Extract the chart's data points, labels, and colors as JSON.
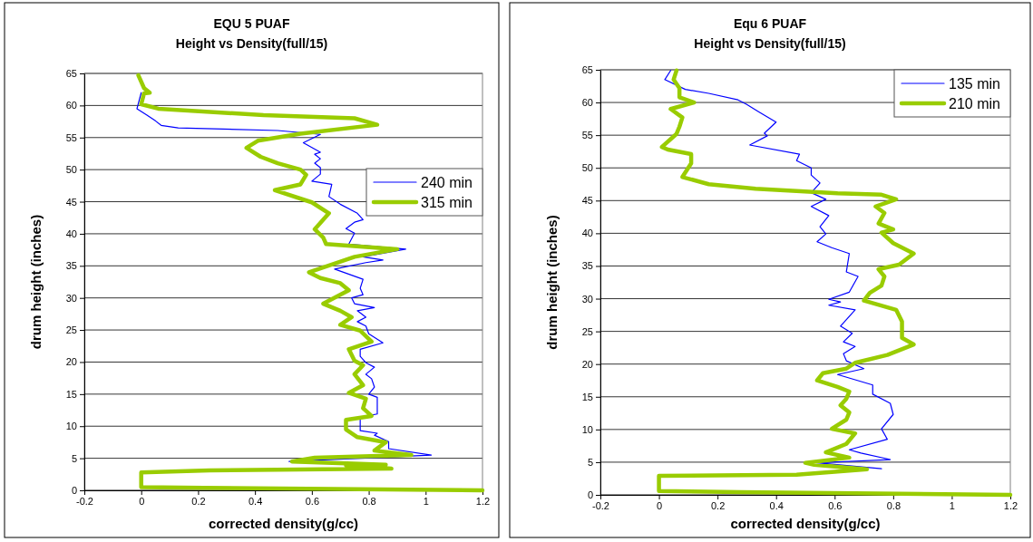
{
  "chart_data": [
    {
      "type": "line",
      "title": "EQU 5 PUAF\nHeight vs Density(full/15)",
      "xlabel": "corrected density(g/cc)",
      "ylabel": "drum height (inches)",
      "xlim": [
        -0.2,
        1.2
      ],
      "xticks": [
        -0.2,
        0,
        0.2,
        0.4,
        0.6,
        0.8,
        1,
        1.2
      ],
      "ylim": [
        0,
        65
      ],
      "yticks": [
        0,
        5,
        10,
        15,
        20,
        25,
        30,
        35,
        40,
        45,
        50,
        55,
        60,
        65
      ],
      "grid": "y",
      "legend": "top right",
      "marker": "none",
      "line_style": "solid",
      "series": [
        {
          "name": "240 min",
          "color": "#0000ff",
          "x": [
            0.52,
            1.02,
            0.87,
            0.87,
            0.82,
            0.83,
            0.77,
            0.77,
            0.77,
            0.83,
            0.83,
            0.83,
            0.8,
            0.82,
            0.81,
            0.79,
            0.82,
            0.79,
            0.77,
            0.77,
            0.85,
            0.8,
            0.79,
            0.76,
            0.79,
            0.76,
            0.82,
            0.75,
            0.74,
            0.78,
            0.77,
            0.78,
            0.68,
            0.79,
            0.85,
            0.78,
            0.93,
            0.73,
            0.75,
            0.72,
            0.75,
            0.78,
            0.76,
            0.7,
            0.66,
            0.67,
            0.6,
            0.63,
            0.63,
            0.61,
            0.63,
            0.61,
            0.63,
            0.57,
            0.63,
            0.48,
            0.13,
            0.07,
            0.05,
            0.02,
            -0.015,
            0
          ],
          "values": [
            4.5,
            5.5,
            6.5,
            7.6,
            8.6,
            8.9,
            9.3,
            10.5,
            11.4,
            11.9,
            13.1,
            14.5,
            15,
            16.1,
            17.4,
            18.1,
            19.2,
            19.9,
            20.9,
            22,
            23,
            24.4,
            25.6,
            26.3,
            27,
            28,
            28.5,
            29.1,
            30,
            30.5,
            31.5,
            32.9,
            34.5,
            35.5,
            35.9,
            36.4,
            37.6,
            38.4,
            40.1,
            40.8,
            41.8,
            42.2,
            43.2,
            44.6,
            45.8,
            47.7,
            48.2,
            49.3,
            50.3,
            51,
            51.7,
            52.4,
            52.7,
            54.2,
            55.5,
            56.1,
            56.5,
            56.9,
            57.6,
            58.5,
            59.5,
            62
          ]
        },
        {
          "name": "315 min",
          "color": "#99cc00",
          "x": [
            1.2,
            0.22,
            0,
            0,
            0.24,
            0.88,
            0.72,
            0.86,
            0.53,
            0.61,
            0.95,
            0.82,
            0.86,
            0.76,
            0.72,
            0.72,
            0.81,
            0.78,
            0.79,
            0.73,
            0.78,
            0.75,
            0.78,
            0.75,
            0.73,
            0.81,
            0.77,
            0.7,
            0.74,
            0.7,
            0.64,
            0.73,
            0.7,
            0.63,
            0.59,
            0.75,
            0.9,
            0.65,
            0.64,
            0.61,
            0.66,
            0.6,
            0.47,
            0.56,
            0.58,
            0.56,
            0.48,
            0.42,
            0.37,
            0.41,
            0.56,
            0.83,
            0.75,
            0.43,
            0.06,
            0,
            0.01,
            0.03,
            0.01,
            -0.01
          ],
          "values": [
            0,
            0.4,
            0.5,
            2.8,
            3.1,
            3.4,
            3.9,
            4,
            4.5,
            5.1,
            5.5,
            6.2,
            7.5,
            8.3,
            9.5,
            11,
            11.6,
            12.8,
            14.3,
            15.2,
            16.4,
            18.1,
            19.5,
            20.2,
            22,
            23.2,
            24.9,
            25.8,
            27,
            28,
            29.1,
            31.2,
            32.3,
            33.1,
            34,
            36.4,
            37.6,
            38.4,
            39.4,
            40.7,
            43.2,
            44.9,
            46.8,
            47.7,
            49.2,
            50,
            51,
            52,
            53.4,
            54.5,
            55.6,
            57,
            58,
            58.5,
            59.5,
            60.2,
            61.9,
            62,
            62.7,
            64.7
          ]
        }
      ]
    },
    {
      "type": "line",
      "title": "Equ 6 PUAF\nHeight vs Density(full/15)",
      "xlabel": "corrected density(g/cc)",
      "ylabel": "drum height (inches)",
      "xlim": [
        -0.2,
        1.2
      ],
      "xticks": [
        -0.2,
        0,
        0.2,
        0.4,
        0.6,
        0.8,
        1,
        1.2
      ],
      "ylim": [
        0,
        65
      ],
      "yticks": [
        0,
        5,
        10,
        15,
        20,
        25,
        30,
        35,
        40,
        45,
        50,
        55,
        60,
        65
      ],
      "grid": "y",
      "legend": "top right",
      "marker": "none",
      "line_style": "solid",
      "series": [
        {
          "name": "135 min",
          "color": "#0000ff",
          "x": [
            0.76,
            0.54,
            0.79,
            0.69,
            0.65,
            0.78,
            0.76,
            0.8,
            0.79,
            0.73,
            0.73,
            0.61,
            0.7,
            0.64,
            0.63,
            0.67,
            0.63,
            0.66,
            0.62,
            0.67,
            0.58,
            0.62,
            0.58,
            0.65,
            0.68,
            0.64,
            0.65,
            0.59,
            0.54,
            0.57,
            0.55,
            0.58,
            0.52,
            0.57,
            0.52,
            0.55,
            0.52,
            0.52,
            0.47,
            0.48,
            0.31,
            0.37,
            0.36,
            0.4,
            0.34,
            0.3,
            0.27,
            0.17,
            0.09,
            0.02,
            0.04
          ],
          "values": [
            4,
            4.9,
            5.4,
            6.4,
            6.9,
            8.5,
            10.1,
            12.3,
            14,
            15.4,
            16.8,
            18.4,
            19.3,
            20.5,
            21.6,
            22.7,
            23.4,
            24.7,
            25.8,
            28.3,
            29,
            29.5,
            29.9,
            31,
            33.4,
            34.1,
            36.9,
            37.8,
            38.7,
            39.9,
            41,
            42.7,
            44.1,
            45.2,
            46.2,
            47.7,
            48.9,
            50,
            51.1,
            52.1,
            53.5,
            54.9,
            55.3,
            57,
            58.6,
            59.7,
            60.4,
            61.4,
            62,
            63.5,
            64.9
          ]
        },
        {
          "name": "210 min",
          "color": "#99cc00",
          "x": [
            1.2,
            0.28,
            0,
            0,
            0.47,
            0.71,
            0.53,
            0.5,
            0.65,
            0.57,
            0.64,
            0.67,
            0.59,
            0.64,
            0.65,
            0.62,
            0.64,
            0.65,
            0.61,
            0.54,
            0.56,
            0.64,
            0.67,
            0.78,
            0.87,
            0.83,
            0.83,
            0.81,
            0.7,
            0.72,
            0.76,
            0.77,
            0.75,
            0.82,
            0.87,
            0.8,
            0.76,
            0.8,
            0.75,
            0.77,
            0.74,
            0.81,
            0.76,
            0.61,
            0.33,
            0.17,
            0.08,
            0.11,
            0.11,
            0.03,
            0.01,
            0.06,
            0.07,
            0.08,
            0.04,
            0.12,
            0.07,
            0.07,
            0.05,
            0.06
          ],
          "values": [
            0,
            0.4,
            0.6,
            2.9,
            3.1,
            3.9,
            4.6,
            4.9,
            5.7,
            6.5,
            7.8,
            9.4,
            10.1,
            11.5,
            12.6,
            13.7,
            14.7,
            15.8,
            16.5,
            17.5,
            18.6,
            19.3,
            20.2,
            21.4,
            23,
            24,
            26.5,
            28.3,
            29.7,
            30.9,
            32,
            33.4,
            34.5,
            35.2,
            36.9,
            38.5,
            40.1,
            40.6,
            41.5,
            43.1,
            44.1,
            45.2,
            45.9,
            46.1,
            46.8,
            47.5,
            48.6,
            50.7,
            52.1,
            52.8,
            53.2,
            55.2,
            56.3,
            57.7,
            59,
            60,
            60.8,
            62.2,
            63.5,
            64.9
          ]
        }
      ]
    }
  ]
}
